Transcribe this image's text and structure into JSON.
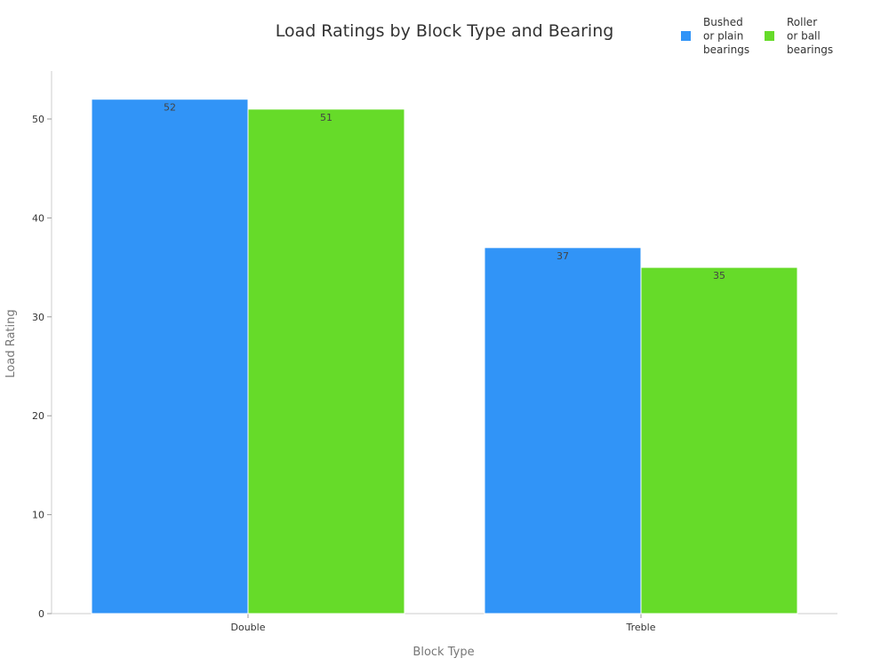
{
  "chart_data": {
    "type": "bar",
    "title": "Load Ratings by Block Type and Bearing",
    "xlabel": "Block Type",
    "ylabel": "Load Rating",
    "categories": [
      "Double",
      "Treble"
    ],
    "series": [
      {
        "name": "Bushed or plain bearings",
        "legend_lines": [
          "Bushed",
          "or plain",
          "bearings"
        ],
        "color": "#3194f7",
        "values": [
          52,
          37
        ]
      },
      {
        "name": "Roller or ball bearings",
        "legend_lines": [
          "Roller",
          "or ball",
          "bearings"
        ],
        "color": "#66db29",
        "values": [
          51,
          35
        ]
      }
    ],
    "ylim": [
      0,
      55
    ],
    "yticks": [
      0,
      10,
      20,
      30,
      40,
      50
    ],
    "grid": false,
    "legend_position": "top-right",
    "data_labels": true
  }
}
